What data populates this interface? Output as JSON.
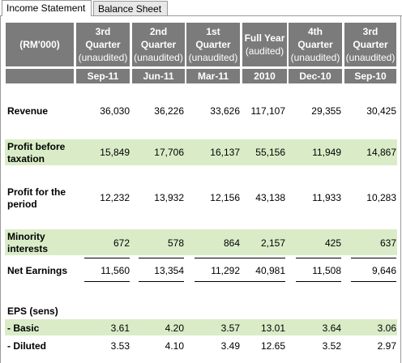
{
  "tabs": [
    {
      "label": "Income Statement",
      "active": true
    },
    {
      "label": "Balance Sheet",
      "active": false
    }
  ],
  "table": {
    "unit_label": "(RM'000)",
    "columns": [
      {
        "line1": "3rd",
        "line2": "Quarter",
        "line3": "(unaudited)",
        "period": "Sep-11"
      },
      {
        "line1": "2nd",
        "line2": "Quarter",
        "line3": "(unaudited)",
        "period": "Jun-11"
      },
      {
        "line1": "1st",
        "line2": "Quarter",
        "line3": "(unaudited)",
        "period": "Mar-11"
      },
      {
        "line1": "Full Year",
        "line2": "(audited)",
        "line3": "",
        "period": "2010"
      },
      {
        "line1": "4th",
        "line2": "Quarter",
        "line3": "(unaudited)",
        "period": "Dec-10"
      },
      {
        "line1": "3rd",
        "line2": "Quarter",
        "line3": "(unaudited)",
        "period": "Sep-10"
      }
    ],
    "rows": [
      {
        "label": "Revenue",
        "values": [
          "36,030",
          "36,226",
          "33,626",
          "117,107",
          "29,355",
          "30,425"
        ]
      },
      {
        "label": "Profit before taxation",
        "values": [
          "15,849",
          "17,706",
          "16,137",
          "55,156",
          "11,949",
          "14,867"
        ]
      },
      {
        "label": "Profit for the period",
        "values": [
          "12,232",
          "13,932",
          "12,156",
          "43,138",
          "11,933",
          "10,283"
        ]
      },
      {
        "label": "Minority interests",
        "values": [
          "672",
          "578",
          "864",
          "2,157",
          "425",
          "637"
        ]
      },
      {
        "label": "Net Earnings",
        "values": [
          "11,560",
          "13,354",
          "11,292",
          "40,981",
          "11,508",
          "9,646"
        ]
      },
      {
        "label": "EPS (sens)",
        "values": []
      },
      {
        "label": "- Basic",
        "values": [
          "3.61",
          "4.20",
          "3.57",
          "13.01",
          "3.64",
          "3.06"
        ]
      },
      {
        "label": "- Diluted",
        "values": [
          "3.53",
          "4.10",
          "3.49",
          "12.65",
          "3.52",
          "2.97"
        ]
      }
    ]
  },
  "colors": {
    "header_bg": "#7b7b7b",
    "band_bg": "#d9ecc7"
  }
}
